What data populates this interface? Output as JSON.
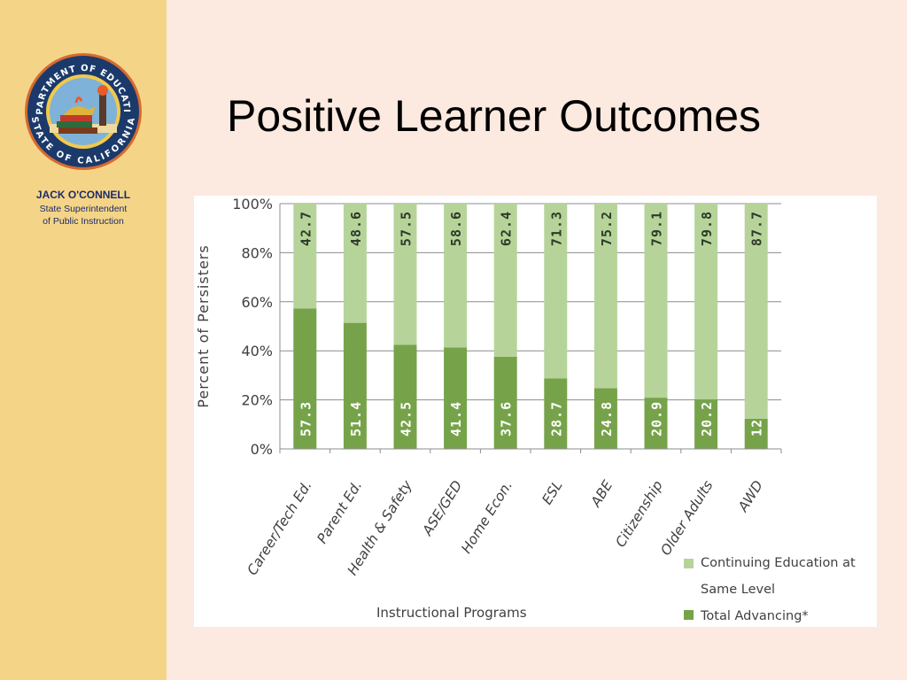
{
  "sidebar": {
    "seal": {
      "top_text": "DEPARTMENT OF EDUCATION",
      "bottom_text": "STATE OF CALIFORNIA"
    },
    "person_name": "JACK O'CONNELL",
    "person_title_line1": "State Superintendent",
    "person_title_line2": "of Public Instruction"
  },
  "slide": {
    "title": "Positive Learner Outcomes"
  },
  "colors": {
    "background": "#fce9df",
    "sidebar": "#f4d587",
    "continuing": "#b6d49a",
    "advancing": "#76a34a"
  },
  "chart_data": {
    "type": "bar",
    "stacked": true,
    "categories": [
      "Career/Tech Ed.",
      "Parent Ed.",
      "Health & Safety",
      "ASE/GED",
      "Home Econ.",
      "ESL",
      "ABE",
      "Citizenship",
      "Older Adults",
      "AWD"
    ],
    "series": [
      {
        "name": "Total Advancing*",
        "color": "#76a34a",
        "values": [
          57.3,
          51.4,
          42.5,
          41.4,
          37.6,
          28.7,
          24.8,
          20.9,
          20.2,
          12.3
        ]
      },
      {
        "name": "Continuing Education at Same Level",
        "color": "#b6d49a",
        "values": [
          42.7,
          48.6,
          57.5,
          58.6,
          62.4,
          71.3,
          75.2,
          79.1,
          79.8,
          87.7
        ]
      }
    ],
    "ylabel": "Percent of Persisters",
    "xlabel": "Instructional Programs",
    "ylim": [
      0,
      100
    ],
    "yticks": [
      "0%",
      "20%",
      "40%",
      "60%",
      "80%",
      "100%"
    ],
    "grid": true,
    "legend_position": "bottom-right",
    "legend": {
      "continuing_line1": "Continuing Education at",
      "continuing_line2": "Same Level",
      "advancing": "Total Advancing*"
    }
  }
}
